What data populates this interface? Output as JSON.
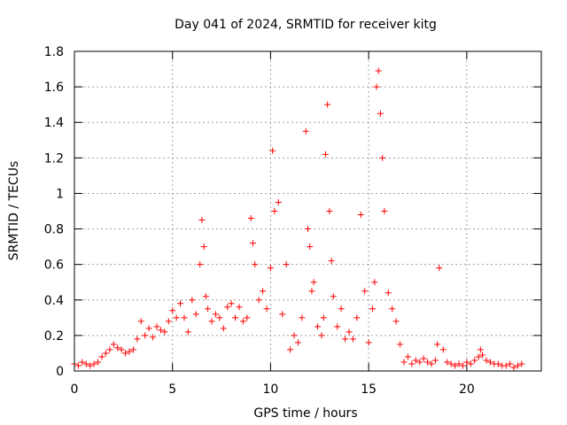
{
  "chart_data": {
    "type": "scatter",
    "title": "Day 041 of 2024, SRMTID for receiver kitg",
    "xlabel": "GPS time / hours",
    "ylabel": "SRMTID / TECUs",
    "xlim": [
      0,
      23.8
    ],
    "ylim": [
      0,
      1.8
    ],
    "xticks": [
      0,
      5,
      10,
      15,
      20
    ],
    "xtick_labels": [
      "0",
      "5",
      "10",
      "15",
      "20"
    ],
    "yticks": [
      0,
      0.2,
      0.4,
      0.6,
      0.8,
      1,
      1.2,
      1.4,
      1.6,
      1.8
    ],
    "ytick_labels": [
      "0",
      "0.2",
      "0.4",
      "0.6",
      "0.8",
      "1",
      "1.2",
      "1.4",
      "1.6",
      "1.8"
    ],
    "grid": true,
    "marker": "plus",
    "color": "#ff0000",
    "series": [
      {
        "name": "SRMTID",
        "x": [
          0.0,
          0.2,
          0.4,
          0.6,
          0.8,
          1.0,
          1.2,
          1.4,
          1.6,
          1.8,
          2.0,
          2.2,
          2.4,
          2.6,
          2.8,
          3.0,
          3.2,
          3.4,
          3.6,
          3.8,
          4.0,
          4.2,
          4.4,
          4.6,
          4.8,
          5.0,
          5.2,
          5.4,
          5.6,
          5.8,
          6.0,
          6.2,
          6.4,
          6.5,
          6.6,
          6.7,
          6.8,
          7.0,
          7.2,
          7.4,
          7.6,
          7.8,
          8.0,
          8.2,
          8.4,
          8.6,
          8.8,
          9.0,
          9.1,
          9.2,
          9.4,
          9.6,
          9.8,
          10.0,
          10.1,
          10.2,
          10.4,
          10.6,
          10.8,
          11.0,
          11.2,
          11.4,
          11.6,
          11.8,
          11.9,
          12.0,
          12.1,
          12.2,
          12.4,
          12.6,
          12.7,
          12.8,
          12.9,
          13.0,
          13.1,
          13.2,
          13.4,
          13.6,
          13.8,
          14.0,
          14.2,
          14.4,
          14.6,
          14.8,
          15.0,
          15.2,
          15.3,
          15.4,
          15.5,
          15.6,
          15.7,
          15.8,
          16.0,
          16.2,
          16.4,
          16.6,
          16.8,
          17.0,
          17.2,
          17.4,
          17.6,
          17.8,
          18.0,
          18.2,
          18.4,
          18.5,
          18.6,
          18.8,
          19.0,
          19.2,
          19.4,
          19.6,
          19.8,
          20.0,
          20.2,
          20.4,
          20.6,
          20.7,
          20.8,
          21.0,
          21.2,
          21.4,
          21.6,
          21.8,
          22.0,
          22.2,
          22.4,
          22.6,
          22.8
        ],
        "y": [
          0.04,
          0.03,
          0.05,
          0.04,
          0.03,
          0.04,
          0.05,
          0.08,
          0.1,
          0.12,
          0.15,
          0.13,
          0.12,
          0.1,
          0.11,
          0.12,
          0.18,
          0.28,
          0.2,
          0.24,
          0.19,
          0.25,
          0.23,
          0.22,
          0.28,
          0.34,
          0.3,
          0.38,
          0.3,
          0.22,
          0.4,
          0.32,
          0.6,
          0.85,
          0.7,
          0.42,
          0.35,
          0.28,
          0.32,
          0.3,
          0.24,
          0.36,
          0.38,
          0.3,
          0.36,
          0.28,
          0.3,
          0.86,
          0.72,
          0.6,
          0.4,
          0.45,
          0.35,
          0.58,
          1.24,
          0.9,
          0.95,
          0.32,
          0.6,
          0.12,
          0.2,
          0.16,
          0.3,
          1.35,
          0.8,
          0.7,
          0.45,
          0.5,
          0.25,
          0.2,
          0.3,
          1.22,
          1.5,
          0.9,
          0.62,
          0.42,
          0.25,
          0.35,
          0.18,
          0.22,
          0.18,
          0.3,
          0.88,
          0.45,
          0.16,
          0.35,
          0.5,
          1.6,
          1.69,
          1.45,
          1.2,
          0.9,
          0.44,
          0.35,
          0.28,
          0.15,
          0.05,
          0.08,
          0.04,
          0.06,
          0.05,
          0.07,
          0.05,
          0.04,
          0.06,
          0.15,
          0.58,
          0.12,
          0.05,
          0.04,
          0.03,
          0.04,
          0.03,
          0.05,
          0.04,
          0.06,
          0.08,
          0.12,
          0.09,
          0.06,
          0.05,
          0.04,
          0.04,
          0.03,
          0.03,
          0.04,
          0.02,
          0.03,
          0.04
        ]
      }
    ]
  }
}
